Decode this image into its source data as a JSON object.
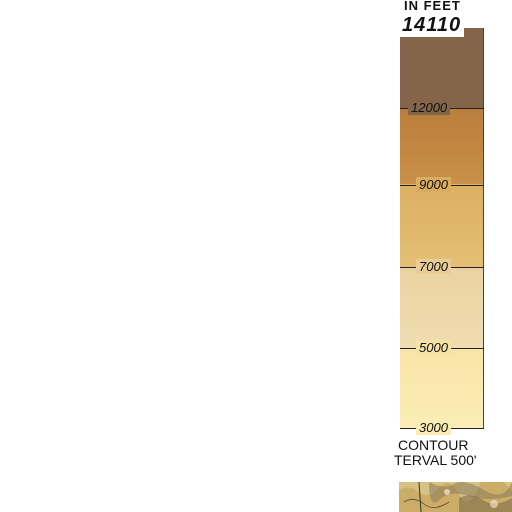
{
  "legend": {
    "header": "IN  FEET",
    "max_value": "14110",
    "ticks": [
      {
        "label": "12000",
        "value": 12000
      },
      {
        "label": "9000",
        "value": 9000
      },
      {
        "label": "7000",
        "value": 7000
      },
      {
        "label": "5000",
        "value": 5000
      },
      {
        "label": "3000",
        "value": 3000
      }
    ],
    "contour_line1": "CONTOUR",
    "contour_line2": "TERVAL  500'",
    "colors": {
      "band_top": "#84654a",
      "band_2": "#c08642",
      "band_3": "#e0b86b",
      "band_4": "#eed7a9",
      "band_5": "#fae8ad"
    }
  }
}
